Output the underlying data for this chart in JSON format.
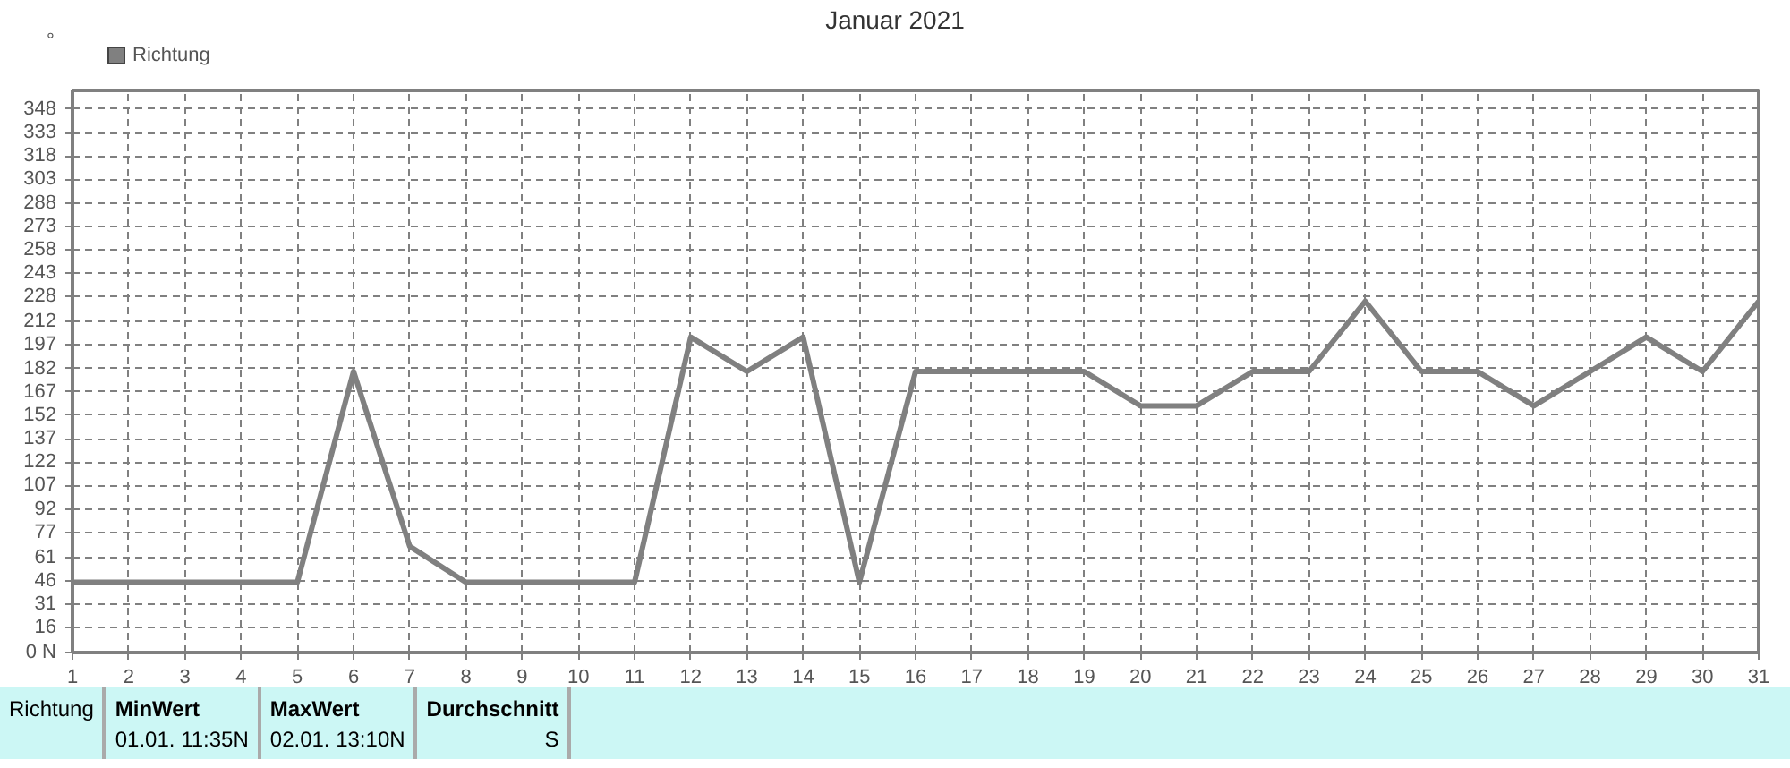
{
  "chart_data": {
    "type": "line",
    "title": "Januar 2021",
    "ylabel": "°",
    "x": [
      1,
      2,
      3,
      4,
      5,
      6,
      7,
      8,
      9,
      10,
      11,
      12,
      13,
      14,
      15,
      16,
      17,
      18,
      19,
      20,
      21,
      22,
      23,
      24,
      25,
      26,
      27,
      28,
      29,
      30,
      31
    ],
    "series": [
      {
        "name": "Richtung",
        "color": "#808080",
        "values": [
          45,
          45,
          45,
          45,
          45,
          180,
          68,
          45,
          45,
          45,
          45,
          202,
          180,
          202,
          45,
          180,
          180,
          180,
          180,
          158,
          158,
          180,
          180,
          225,
          180,
          180,
          158,
          180,
          202,
          180,
          225
        ]
      }
    ],
    "xlim": [
      1,
      31
    ],
    "xticks": [
      1,
      2,
      3,
      4,
      5,
      6,
      7,
      8,
      9,
      10,
      11,
      12,
      13,
      14,
      15,
      16,
      17,
      18,
      19,
      20,
      21,
      22,
      23,
      24,
      25,
      26,
      27,
      28,
      29,
      30,
      31
    ],
    "ylim": [
      0,
      360
    ],
    "yticks": [
      {
        "value": 0,
        "label": "0 N"
      },
      16,
      31,
      46,
      61,
      77,
      92,
      107,
      122,
      137,
      152,
      167,
      182,
      197,
      212,
      228,
      243,
      258,
      273,
      288,
      303,
      318,
      333,
      348
    ],
    "grid": true,
    "legend": "top left",
    "marker": "none",
    "line_style": "solid",
    "annotations": [
      "Richtung",
      "MinWert",
      "01.01.  11:35",
      "N",
      "MaxWert",
      "02.01.  13:10",
      "N",
      "Durchschnitt",
      "S"
    ]
  }
}
